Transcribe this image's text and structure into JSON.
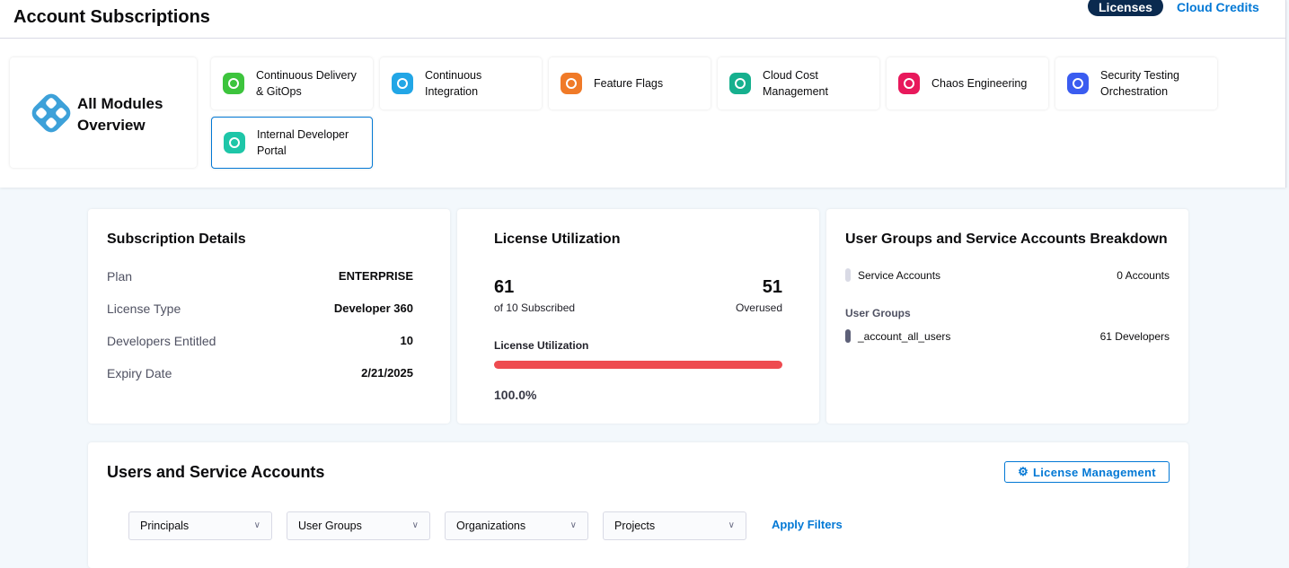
{
  "header": {
    "title": "Account Subscriptions",
    "tabs": [
      {
        "label": "Licenses",
        "active": true
      },
      {
        "label": "Cloud Credits",
        "active": false
      }
    ]
  },
  "modules": {
    "all": {
      "line1": "All Modules",
      "line2": "Overview"
    },
    "items": [
      {
        "name": "Continuous Delivery & GitOps",
        "l1": "Continuous Delivery",
        "l2": "& GitOps",
        "icon": "cd-gitops-icon",
        "color": "#3dc43d"
      },
      {
        "name": "Continuous Integration",
        "l1": "Continuous",
        "l2": "Integration",
        "icon": "ci-icon",
        "color": "#22a6e6"
      },
      {
        "name": "Feature Flags",
        "l1": "Feature Flags",
        "l2": "",
        "icon": "feature-flags-icon",
        "color": "#f07a28"
      },
      {
        "name": "Cloud Cost Management",
        "l1": "Cloud Cost",
        "l2": "Management",
        "icon": "ccm-icon",
        "color": "#16b08e"
      },
      {
        "name": "Chaos Engineering",
        "l1": "Chaos Engineering",
        "l2": "",
        "icon": "chaos-icon",
        "color": "#e8195c"
      },
      {
        "name": "Security Testing Orchestration",
        "l1": "Security Testing",
        "l2": "Orchestration",
        "icon": "sto-icon",
        "color": "#3a5cf0"
      },
      {
        "name": "Internal Developer Portal",
        "l1": "Internal Developer",
        "l2": "Portal",
        "icon": "idp-icon",
        "color": "#1ec6a8",
        "selected": true
      }
    ]
  },
  "subscription": {
    "title": "Subscription Details",
    "rows": [
      {
        "k": "Plan",
        "v": "ENTERPRISE"
      },
      {
        "k": "License Type",
        "v": "Developer 360"
      },
      {
        "k": "Developers Entitled",
        "v": "10"
      },
      {
        "k": "Expiry Date",
        "v": "2/21/2025"
      }
    ]
  },
  "utilization": {
    "title": "License Utilization",
    "used": "61",
    "used_label": "of 10 Subscribed",
    "overused": "51",
    "overused_label": "Overused",
    "bar_label": "License Utilization",
    "percent_text": "100.0%",
    "percent": 100,
    "bar_color": "#ee4b50"
  },
  "breakdown": {
    "title": "User Groups and Service Accounts Breakdown",
    "service": {
      "label": "Service Accounts",
      "value": "0 Accounts"
    },
    "groups_label": "User Groups",
    "groups": [
      {
        "label": "_account_all_users",
        "value": "61 Developers"
      }
    ]
  },
  "users": {
    "title": "Users and Service Accounts",
    "license_mgmt": "License Management",
    "filters": [
      "Principals",
      "User Groups",
      "Organizations",
      "Projects"
    ],
    "apply": "Apply Filters"
  }
}
